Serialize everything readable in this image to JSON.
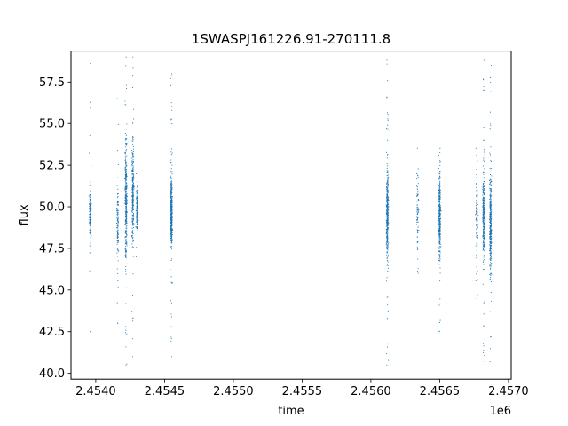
{
  "chart_data": {
    "type": "scatter",
    "title": "1SWASPJ161226.91-270111.8",
    "xlabel": "time",
    "ylabel": "flux",
    "x_offset_label": "1e6",
    "xlim": [
      2.45382,
      2.45702
    ],
    "ylim": [
      39.65,
      59.35
    ],
    "x_ticks": [
      2.454,
      2.4545,
      2.455,
      2.4555,
      2.456,
      2.4565,
      2.457
    ],
    "x_tick_labels": [
      "2.4540",
      "2.4545",
      "2.4550",
      "2.4555",
      "2.4560",
      "2.4565",
      "2.4570"
    ],
    "y_ticks": [
      40.0,
      42.5,
      45.0,
      47.5,
      50.0,
      52.5,
      55.0,
      57.5
    ],
    "y_tick_labels": [
      "40.0",
      "42.5",
      "45.0",
      "47.5",
      "50.0",
      "52.5",
      "55.0",
      "57.5"
    ],
    "grid": false,
    "point_color": "#1f77b4",
    "clusters": [
      {
        "time": 2.45396,
        "flux_low": 47.0,
        "flux_high": 52.0,
        "flux_min": 42.5,
        "flux_max": 58.6,
        "count": 140
      },
      {
        "time": 2.45416,
        "flux_low": 46.0,
        "flux_high": 52.0,
        "flux_min": 43.0,
        "flux_max": 56.5,
        "count": 120
      },
      {
        "time": 2.45422,
        "flux_low": 45.5,
        "flux_high": 55.0,
        "flux_min": 40.5,
        "flux_max": 59.0,
        "count": 380
      },
      {
        "time": 2.45427,
        "flux_low": 46.5,
        "flux_high": 55.5,
        "flux_min": 41.0,
        "flux_max": 59.0,
        "count": 280
      },
      {
        "time": 2.4543,
        "flux_low": 48.0,
        "flux_high": 51.5,
        "flux_min": 47.0,
        "flux_max": 52.0,
        "count": 140
      },
      {
        "time": 2.45455,
        "flux_low": 47.0,
        "flux_high": 52.5,
        "flux_min": 41.0,
        "flux_max": 58.0,
        "count": 450
      },
      {
        "time": 2.45612,
        "flux_low": 46.0,
        "flux_high": 53.0,
        "flux_min": 40.5,
        "flux_max": 58.8,
        "count": 450
      },
      {
        "time": 2.45634,
        "flux_low": 46.5,
        "flux_high": 53.0,
        "flux_min": 46.0,
        "flux_max": 53.5,
        "count": 90
      },
      {
        "time": 2.4565,
        "flux_low": 46.0,
        "flux_high": 53.0,
        "flux_min": 42.5,
        "flux_max": 53.5,
        "count": 360
      },
      {
        "time": 2.45677,
        "flux_low": 46.0,
        "flux_high": 53.5,
        "flux_min": 44.5,
        "flux_max": 53.5,
        "count": 150
      },
      {
        "time": 2.45682,
        "flux_low": 46.0,
        "flux_high": 53.0,
        "flux_min": 40.7,
        "flux_max": 58.8,
        "count": 320
      },
      {
        "time": 2.45687,
        "flux_low": 45.0,
        "flux_high": 53.0,
        "flux_min": 40.7,
        "flux_max": 58.5,
        "count": 380
      }
    ]
  }
}
